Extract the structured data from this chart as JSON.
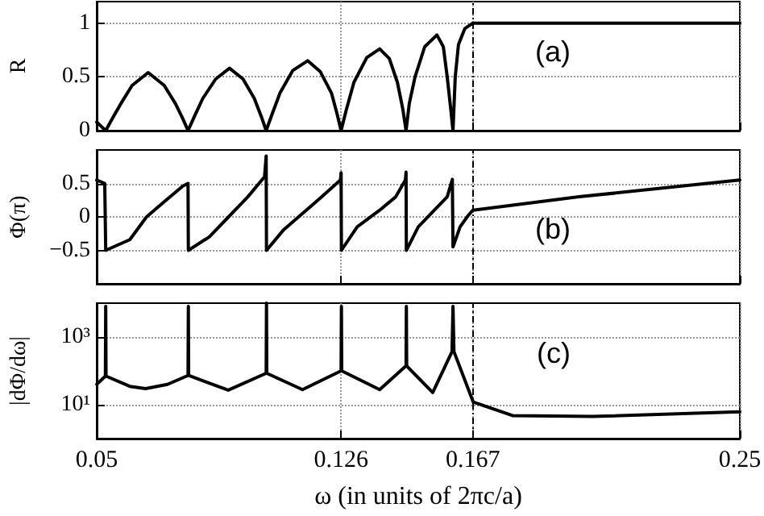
{
  "chart_data": [
    {
      "type": "line",
      "ylabel": "R",
      "annotations": [
        "(a)"
      ],
      "color": "#000000",
      "grid": true,
      "tick_labels": "y",
      "xlim": [
        0.05,
        0.25
      ],
      "xticks": [
        0.05,
        0.126,
        0.167,
        0.25
      ],
      "ylim": [
        0,
        1.2
      ],
      "yticks": [
        0,
        0.5,
        1
      ],
      "ref_lines": [
        {
          "axis": "x",
          "value": 0.167,
          "line_style": "dashed",
          "color": "#000000"
        }
      ],
      "x": [
        0.05,
        0.0528,
        0.055,
        0.0575,
        0.061,
        0.066,
        0.071,
        0.0745,
        0.0768,
        0.0784,
        0.0805,
        0.083,
        0.087,
        0.0913,
        0.0955,
        0.099,
        0.1012,
        0.1027,
        0.1045,
        0.107,
        0.111,
        0.1156,
        0.1195,
        0.123,
        0.1248,
        0.126,
        0.1275,
        0.13,
        0.134,
        0.138,
        0.141,
        0.1435,
        0.1452,
        0.1462,
        0.1472,
        0.149,
        0.152,
        0.1558,
        0.1578,
        0.159,
        0.1601,
        0.1608,
        0.1615,
        0.1625,
        0.1645,
        0.167,
        0.25
      ],
      "values": [
        0.08,
        0,
        0.12,
        0.25,
        0.42,
        0.54,
        0.42,
        0.25,
        0.11,
        0,
        0.14,
        0.3,
        0.48,
        0.58,
        0.48,
        0.3,
        0.13,
        0,
        0.15,
        0.35,
        0.56,
        0.65,
        0.55,
        0.35,
        0.15,
        0,
        0.18,
        0.45,
        0.68,
        0.76,
        0.67,
        0.45,
        0.2,
        0,
        0.25,
        0.5,
        0.78,
        0.89,
        0.78,
        0.5,
        0.2,
        0,
        0.5,
        0.8,
        0.95,
        1,
        1
      ]
    },
    {
      "type": "line",
      "ylabel": "Φ(π)",
      "annotations": [
        "(b)"
      ],
      "color": "#000000",
      "grid": true,
      "tick_labels": "y",
      "xlim": [
        0.05,
        0.25
      ],
      "xticks": [
        0.05,
        0.126,
        0.167,
        0.25
      ],
      "ylim": [
        -1,
        1
      ],
      "yticks": [
        {
          "value": -0.5,
          "label": "−0.5"
        },
        0,
        0.5
      ],
      "ref_lines": [
        {
          "axis": "x",
          "value": 0.167,
          "line_style": "dashed",
          "color": "#000000"
        }
      ],
      "x": [
        0.05,
        0.0525,
        0.0528,
        0.0603,
        0.0655,
        0.0718,
        0.0768,
        0.0784,
        0.0785,
        0.085,
        0.091,
        0.097,
        0.1022,
        0.1027,
        0.1028,
        0.108,
        0.114,
        0.12,
        0.1258,
        0.126,
        0.1261,
        0.131,
        0.138,
        0.143,
        0.146,
        0.1462,
        0.1463,
        0.15,
        0.155,
        0.159,
        0.1606,
        0.1608,
        0.163,
        0.1655,
        0.167,
        0.2,
        0.25
      ],
      "values": [
        0.55,
        0.5,
        -0.5,
        -0.34,
        0,
        0.26,
        0.46,
        0.5,
        -0.5,
        -0.3,
        0,
        0.3,
        0.6,
        0.91,
        -0.5,
        -0.2,
        0.05,
        0.3,
        0.55,
        0.66,
        -0.5,
        -0.15,
        0.1,
        0.3,
        0.55,
        0.67,
        -0.5,
        -0.15,
        0.1,
        0.3,
        0.56,
        -0.45,
        -0.15,
        0.02,
        0.1,
        0.3,
        0.55
      ]
    },
    {
      "type": "line",
      "xlabel": "ω (in units of 2πc/a)",
      "ylabel": "|dΦ/dω|",
      "annotations": [
        "(c)"
      ],
      "color": "#000000",
      "grid": true,
      "log": true,
      "xlim": [
        0.05,
        0.25
      ],
      "xticks": [
        0.05,
        0.126,
        0.167,
        0.25
      ],
      "ylim": [
        1,
        10000
      ],
      "yticks": [
        {
          "value": 10,
          "label": "10¹"
        },
        {
          "value": 1000,
          "label": "10³"
        }
      ],
      "ref_lines": [
        {
          "axis": "x",
          "value": 0.167,
          "line_style": "dashed",
          "color": "#000000"
        }
      ],
      "x": [
        0.05,
        0.0527,
        0.0528,
        0.0529,
        0.0603,
        0.0652,
        0.072,
        0.0784,
        0.0785,
        0.0786,
        0.0909,
        0.1027,
        0.1028,
        0.1029,
        0.114,
        0.126,
        0.1261,
        0.1262,
        0.138,
        0.1462,
        0.1463,
        0.1464,
        0.1545,
        0.1605,
        0.1608,
        0.1611,
        0.1671,
        0.1793,
        0.2042,
        0.25
      ],
      "values": [
        40,
        70,
        8000,
        70,
        35,
        30,
        40,
        73,
        8000,
        73,
        27,
        85,
        10000,
        85,
        28,
        100,
        8000,
        100,
        28,
        140,
        8000,
        140,
        23,
        370,
        8000,
        370,
        12,
        4.8,
        4.5,
        6.2
      ]
    }
  ]
}
